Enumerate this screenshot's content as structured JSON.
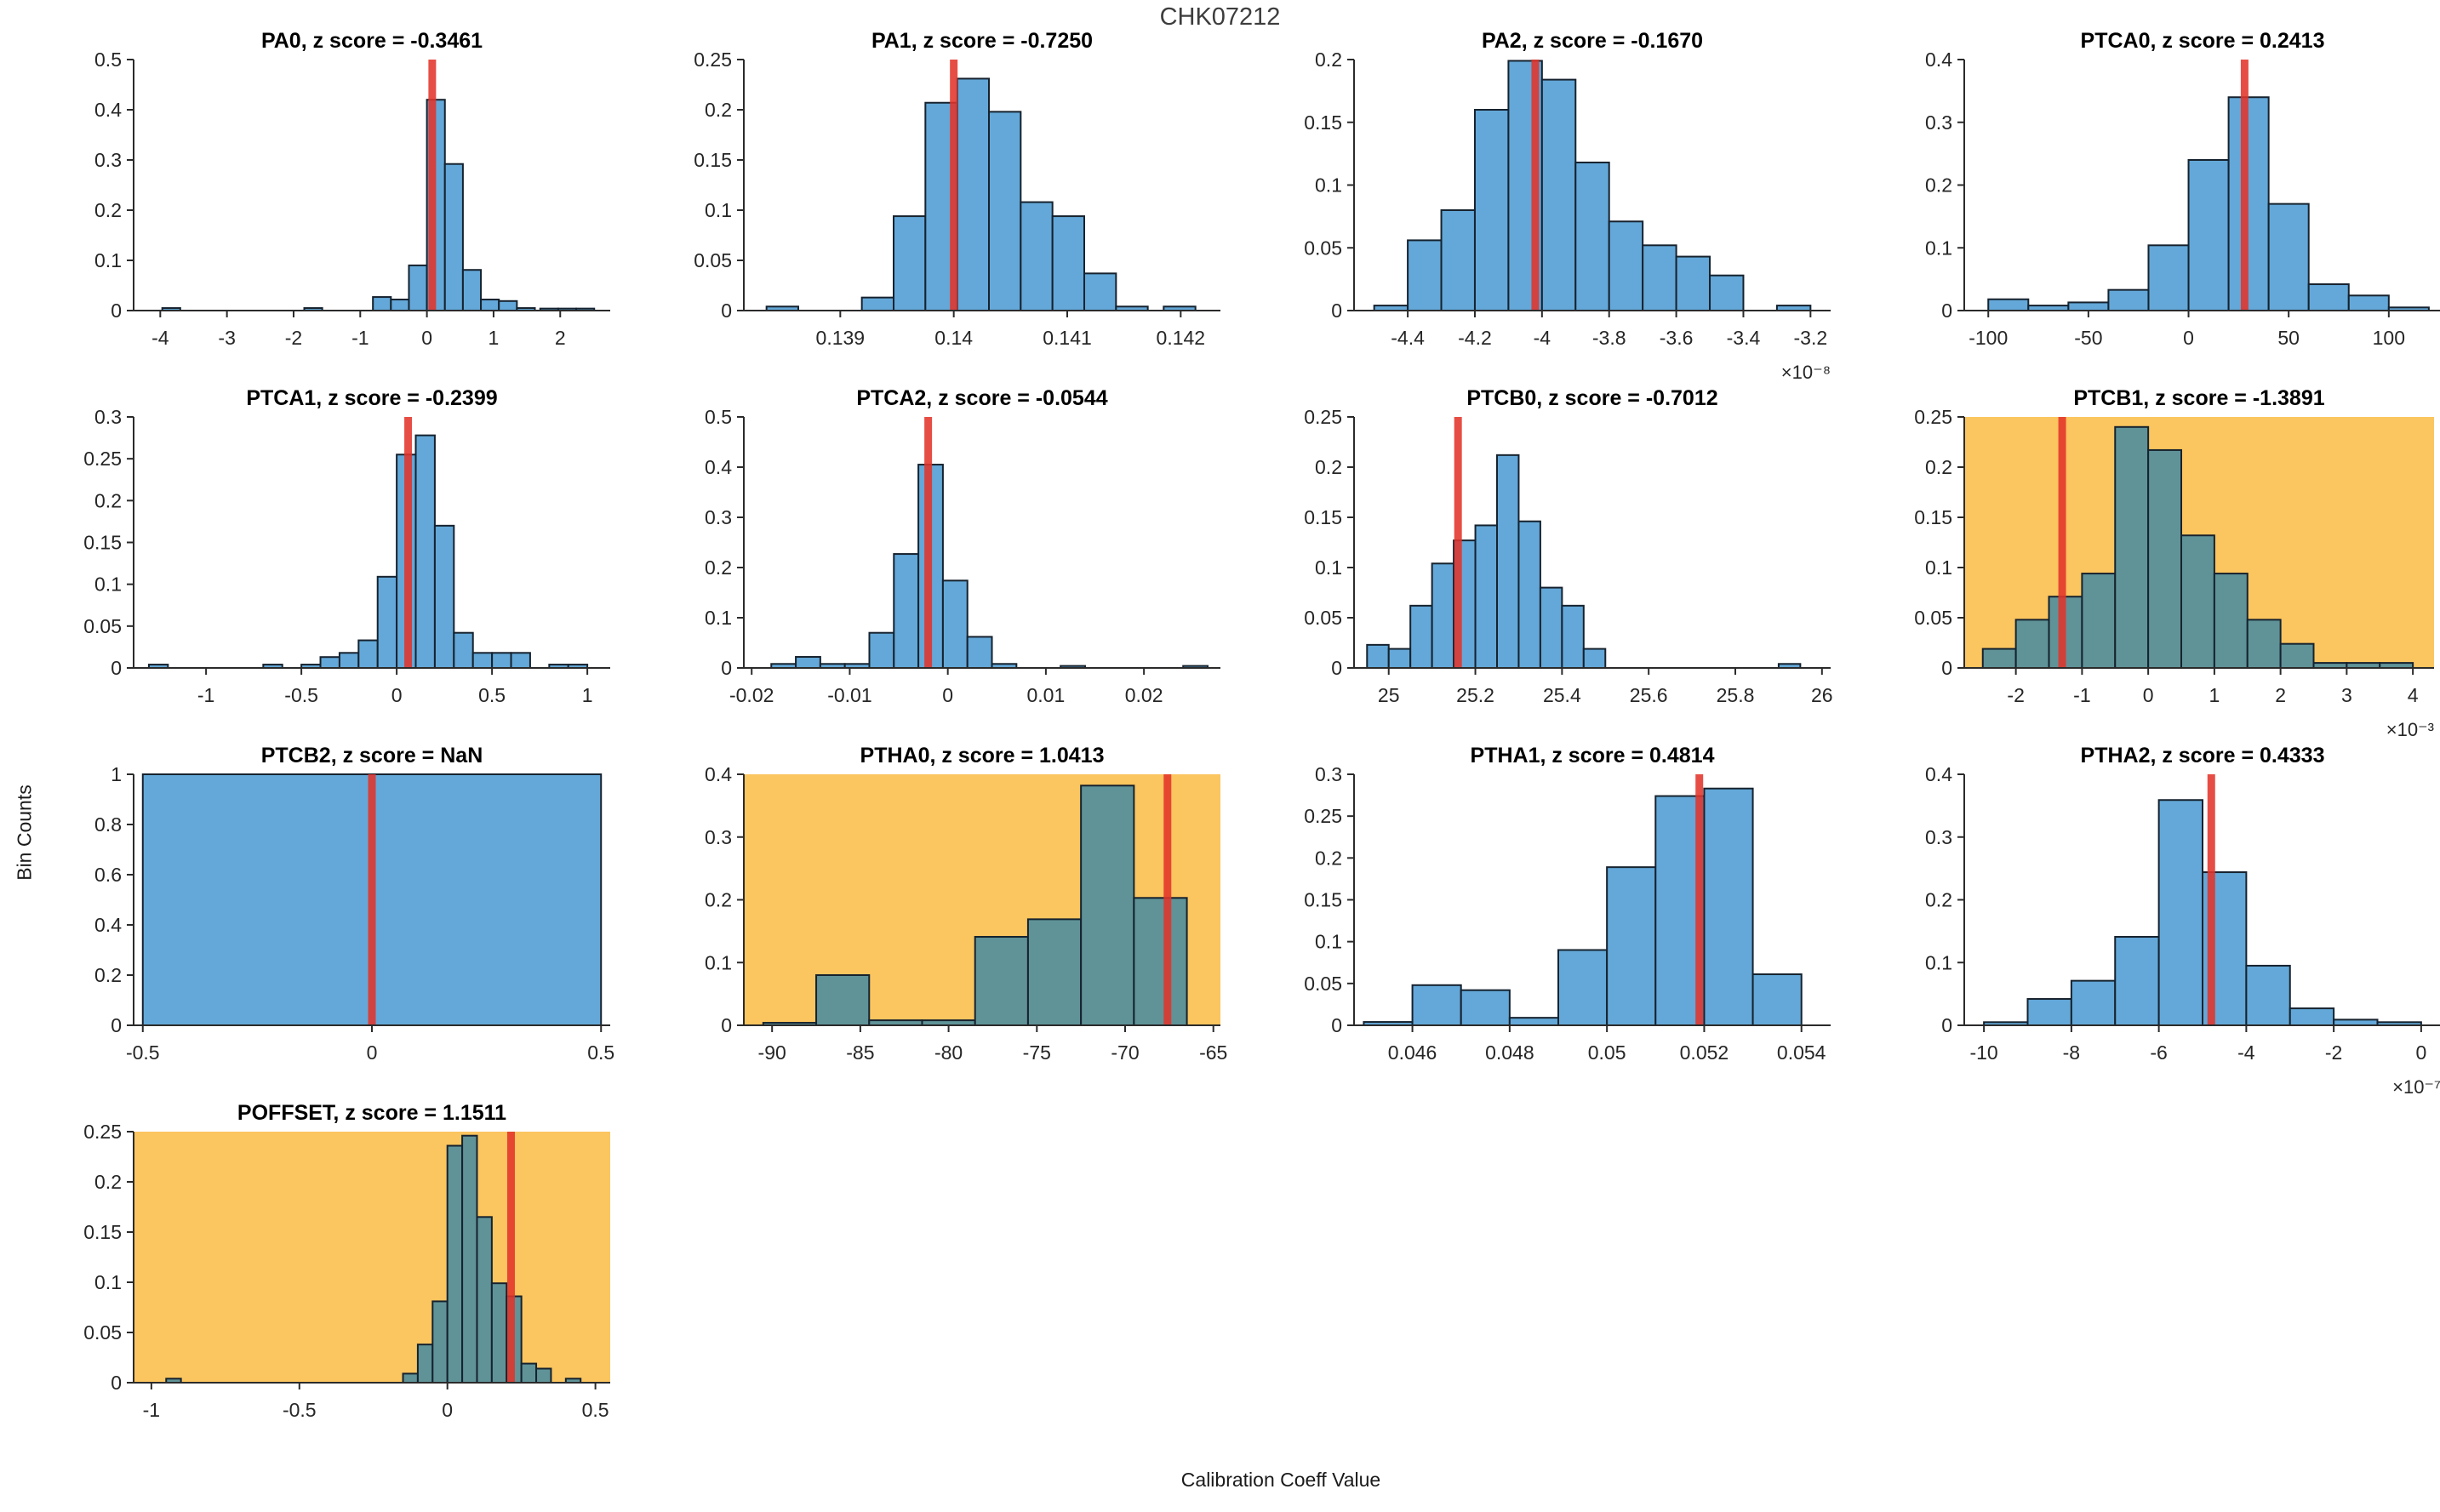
{
  "figure": {
    "title": "CHK07212",
    "xlabel": "Calibration Coeff Value",
    "ylabel": "Bin Counts"
  },
  "colors": {
    "bar_fill": "#63a8d8",
    "bar_fill_highlight": "#5f9398",
    "bar_edge": "#16222e",
    "highlight_bg": "#fbc55f",
    "red_line": "#e3342a",
    "axis": "#2b2b2b"
  },
  "chart_data": [
    {
      "type": "histogram",
      "name": "PA0",
      "title": "PA0, z score = -0.3461",
      "row": 0,
      "col": 0,
      "highlight": false,
      "xlim": [
        -4.4,
        2.75
      ],
      "ylim": [
        0,
        0.5
      ],
      "xticks": [
        -4,
        -3,
        -2,
        -1,
        0,
        1,
        2
      ],
      "xtick_labels": [
        "-4",
        "-3",
        "-2",
        "-1",
        "0",
        "1",
        "2"
      ],
      "yticks": [
        0,
        0.1,
        0.2,
        0.3,
        0.4,
        0.5
      ],
      "ytick_labels": [
        "0",
        "0.1",
        "0.2",
        "0.3",
        "0.4",
        "0.5"
      ],
      "bars": [
        [
          -3.97,
          -3.7,
          0.005
        ],
        [
          -1.84,
          -1.57,
          0.005
        ],
        [
          -0.81,
          -0.54,
          0.027
        ],
        [
          -0.54,
          -0.27,
          0.022
        ],
        [
          -0.27,
          0,
          0.09
        ],
        [
          0,
          0.27,
          0.42
        ],
        [
          0.27,
          0.54,
          0.292
        ],
        [
          0.54,
          0.81,
          0.081
        ],
        [
          0.81,
          1.08,
          0.022
        ],
        [
          1.08,
          1.35,
          0.019
        ],
        [
          1.35,
          1.62,
          0.005
        ],
        [
          1.7,
          1.97,
          0.004
        ],
        [
          1.97,
          2.24,
          0.004
        ],
        [
          2.24,
          2.51,
          0.004
        ]
      ],
      "red_line": 0.08
    },
    {
      "type": "histogram",
      "name": "PA1",
      "title": "PA1, z score = -0.7250",
      "row": 0,
      "col": 1,
      "highlight": false,
      "xlim": [
        0.13815,
        0.14235
      ],
      "ylim": [
        0,
        0.25
      ],
      "xticks": [
        0.139,
        0.14,
        0.141,
        0.142
      ],
      "xtick_labels": [
        "0.139",
        "0.14",
        "0.141",
        "0.142"
      ],
      "yticks": [
        0,
        0.05,
        0.1,
        0.15,
        0.2,
        0.25
      ],
      "ytick_labels": [
        "0",
        "0.05",
        "0.1",
        "0.15",
        "0.2",
        "0.25"
      ],
      "bars": [
        [
          0.13835,
          0.13863,
          0.004
        ],
        [
          0.13919,
          0.13947,
          0.013
        ],
        [
          0.13947,
          0.13975,
          0.094
        ],
        [
          0.13975,
          0.14003,
          0.207
        ],
        [
          0.14003,
          0.14031,
          0.231
        ],
        [
          0.14031,
          0.14059,
          0.198
        ],
        [
          0.14059,
          0.14087,
          0.108
        ],
        [
          0.14087,
          0.14115,
          0.094
        ],
        [
          0.14115,
          0.14143,
          0.037
        ],
        [
          0.14143,
          0.14171,
          0.004
        ],
        [
          0.14185,
          0.14213,
          0.004
        ]
      ],
      "red_line": 0.14
    },
    {
      "type": "histogram",
      "name": "PA2",
      "title": "PA2, z score = -0.1670",
      "row": 0,
      "col": 2,
      "highlight": false,
      "xlim": [
        -4.56,
        -3.14
      ],
      "ylim": [
        0,
        0.2
      ],
      "xticks": [
        -4.4,
        -4.2,
        -4,
        -3.8,
        -3.6,
        -3.4,
        -3.2
      ],
      "xtick_labels": [
        "-4.4",
        "-4.2",
        "-4",
        "-3.8",
        "-3.6",
        "-3.4",
        "-3.2"
      ],
      "yticks": [
        0,
        0.05,
        0.1,
        0.15,
        0.2
      ],
      "ytick_labels": [
        "0",
        "0.05",
        "0.1",
        "0.15",
        "0.2"
      ],
      "bars": [
        [
          -4.5,
          -4.4,
          0.004
        ],
        [
          -4.4,
          -4.3,
          0.056
        ],
        [
          -4.3,
          -4.2,
          0.08
        ],
        [
          -4.2,
          -4.1,
          0.16
        ],
        [
          -4.1,
          -4.0,
          0.199
        ],
        [
          -4.0,
          -3.9,
          0.184
        ],
        [
          -3.9,
          -3.8,
          0.118
        ],
        [
          -3.8,
          -3.7,
          0.071
        ],
        [
          -3.7,
          -3.6,
          0.052
        ],
        [
          -3.6,
          -3.5,
          0.043
        ],
        [
          -3.5,
          -3.4,
          0.028
        ],
        [
          -3.3,
          -3.2,
          0.004
        ]
      ],
      "red_line": -4.02,
      "exponent": "×10⁻⁸"
    },
    {
      "type": "histogram",
      "name": "PTCA0",
      "title": "PTCA0, z score = 0.2413",
      "row": 0,
      "col": 3,
      "highlight": false,
      "xlim": [
        -112,
        126
      ],
      "ylim": [
        0,
        0.4
      ],
      "xticks": [
        -100,
        -50,
        0,
        50,
        100
      ],
      "xtick_labels": [
        "-100",
        "-50",
        "0",
        "50",
        "100"
      ],
      "yticks": [
        0,
        0.1,
        0.2,
        0.3,
        0.4
      ],
      "ytick_labels": [
        "0",
        "0.1",
        "0.2",
        "0.3",
        "0.4"
      ],
      "bars": [
        [
          -100,
          -80,
          0.018
        ],
        [
          -80,
          -60,
          0.008
        ],
        [
          -60,
          -40,
          0.013
        ],
        [
          -40,
          -20,
          0.033
        ],
        [
          -20,
          0,
          0.104
        ],
        [
          0,
          20,
          0.24
        ],
        [
          20,
          40,
          0.34
        ],
        [
          40,
          60,
          0.17
        ],
        [
          60,
          80,
          0.042
        ],
        [
          80,
          100,
          0.024
        ],
        [
          100,
          120,
          0.005
        ]
      ],
      "red_line": 28
    },
    {
      "type": "histogram",
      "name": "PTCA1",
      "title": "PTCA1, z score = -0.2399",
      "row": 1,
      "col": 0,
      "highlight": false,
      "xlim": [
        -1.38,
        1.12
      ],
      "ylim": [
        0,
        0.3
      ],
      "xticks": [
        -1,
        -0.5,
        0,
        0.5,
        1
      ],
      "xtick_labels": [
        "-1",
        "-0.5",
        "0",
        "0.5",
        "1"
      ],
      "yticks": [
        0,
        0.05,
        0.1,
        0.15,
        0.2,
        0.25,
        0.3
      ],
      "ytick_labels": [
        "0",
        "0.05",
        "0.1",
        "0.15",
        "0.2",
        "0.25",
        "0.3"
      ],
      "bars": [
        [
          -1.3,
          -1.2,
          0.004
        ],
        [
          -0.7,
          -0.6,
          0.004
        ],
        [
          -0.5,
          -0.4,
          0.004
        ],
        [
          -0.4,
          -0.3,
          0.013
        ],
        [
          -0.3,
          -0.2,
          0.018
        ],
        [
          -0.2,
          -0.1,
          0.033
        ],
        [
          -0.1,
          0,
          0.109
        ],
        [
          0,
          0.1,
          0.255
        ],
        [
          0.1,
          0.2,
          0.278
        ],
        [
          0.2,
          0.3,
          0.17
        ],
        [
          0.3,
          0.4,
          0.042
        ],
        [
          0.4,
          0.5,
          0.018
        ],
        [
          0.5,
          0.6,
          0.018
        ],
        [
          0.6,
          0.7,
          0.018
        ],
        [
          0.8,
          0.9,
          0.004
        ],
        [
          0.9,
          1.0,
          0.004
        ]
      ],
      "red_line": 0.06
    },
    {
      "type": "histogram",
      "name": "PTCA2",
      "title": "PTCA2, z score = -0.0544",
      "row": 1,
      "col": 1,
      "highlight": false,
      "xlim": [
        -0.0208,
        0.0278
      ],
      "ylim": [
        0,
        0.5
      ],
      "xticks": [
        -0.02,
        -0.01,
        0,
        0.01,
        0.02
      ],
      "xtick_labels": [
        "-0.02",
        "-0.01",
        "0",
        "0.01",
        "0.02"
      ],
      "yticks": [
        0,
        0.1,
        0.2,
        0.3,
        0.4,
        0.5
      ],
      "ytick_labels": [
        "0",
        "0.1",
        "0.2",
        "0.3",
        "0.4",
        "0.5"
      ],
      "bars": [
        [
          -0.018,
          -0.0155,
          0.008
        ],
        [
          -0.0155,
          -0.013,
          0.022
        ],
        [
          -0.013,
          -0.0105,
          0.008
        ],
        [
          -0.0105,
          -0.008,
          0.008
        ],
        [
          -0.008,
          -0.0055,
          0.07
        ],
        [
          -0.0055,
          -0.003,
          0.227
        ],
        [
          -0.003,
          -0.0005,
          0.405
        ],
        [
          -0.0005,
          0.002,
          0.174
        ],
        [
          0.002,
          0.0045,
          0.062
        ],
        [
          0.0045,
          0.007,
          0.008
        ],
        [
          0.0115,
          0.014,
          0.004
        ],
        [
          0.024,
          0.0265,
          0.004
        ]
      ],
      "red_line": -0.002
    },
    {
      "type": "histogram",
      "name": "PTCB0",
      "title": "PTCB0, z score = -0.7012",
      "row": 1,
      "col": 2,
      "highlight": false,
      "xlim": [
        24.92,
        26.02
      ],
      "ylim": [
        0,
        0.25
      ],
      "xticks": [
        25,
        25.2,
        25.4,
        25.6,
        25.8,
        26
      ],
      "xtick_labels": [
        "25",
        "25.2",
        "25.4",
        "25.6",
        "25.8",
        "26"
      ],
      "yticks": [
        0,
        0.05,
        0.1,
        0.15,
        0.2,
        0.25
      ],
      "ytick_labels": [
        "0",
        "0.05",
        "0.1",
        "0.15",
        "0.2",
        "0.25"
      ],
      "bars": [
        [
          24.95,
          25.0,
          0.023
        ],
        [
          25.0,
          25.05,
          0.019
        ],
        [
          25.05,
          25.1,
          0.062
        ],
        [
          25.1,
          25.15,
          0.104
        ],
        [
          25.15,
          25.2,
          0.127
        ],
        [
          25.2,
          25.25,
          0.142
        ],
        [
          25.25,
          25.3,
          0.212
        ],
        [
          25.3,
          25.35,
          0.146
        ],
        [
          25.35,
          25.4,
          0.08
        ],
        [
          25.4,
          25.45,
          0.062
        ],
        [
          25.45,
          25.5,
          0.019
        ],
        [
          25.9,
          25.95,
          0.004
        ]
      ],
      "red_line": 25.16
    },
    {
      "type": "histogram",
      "name": "PTCB1",
      "title": "PTCB1, z score = -1.3891",
      "row": 1,
      "col": 3,
      "highlight": true,
      "wide": true,
      "xlim": [
        -2.78,
        4.32
      ],
      "ylim": [
        0,
        0.25
      ],
      "xticks": [
        -2,
        -1,
        0,
        1,
        2,
        3,
        4
      ],
      "xtick_labels": [
        "-2",
        "-1",
        "0",
        "1",
        "2",
        "3",
        "4"
      ],
      "yticks": [
        0,
        0.05,
        0.1,
        0.15,
        0.2,
        0.25
      ],
      "ytick_labels": [
        "0",
        "0.05",
        "0.1",
        "0.15",
        "0.2",
        "0.25"
      ],
      "bars": [
        [
          -2.5,
          -2,
          0.019
        ],
        [
          -2,
          -1.5,
          0.048
        ],
        [
          -1.5,
          -1,
          0.071
        ],
        [
          -1,
          -0.5,
          0.094
        ],
        [
          -0.5,
          0,
          0.24
        ],
        [
          0,
          0.5,
          0.217
        ],
        [
          0.5,
          1,
          0.132
        ],
        [
          1,
          1.5,
          0.094
        ],
        [
          1.5,
          2,
          0.048
        ],
        [
          2,
          2.5,
          0.024
        ],
        [
          2.5,
          3,
          0.005
        ],
        [
          3,
          3.5,
          0.005
        ],
        [
          3.5,
          4,
          0.005
        ]
      ],
      "red_line": -1.3,
      "exponent": "×10⁻³"
    },
    {
      "type": "histogram",
      "name": "PTCB2",
      "title": "PTCB2, z score = NaN",
      "row": 2,
      "col": 0,
      "highlight": false,
      "xlim": [
        -0.52,
        0.52
      ],
      "ylim": [
        0,
        1
      ],
      "xticks": [
        -0.5,
        0,
        0.5
      ],
      "xtick_labels": [
        "-0.5",
        "0",
        "0.5"
      ],
      "yticks": [
        0,
        0.2,
        0.4,
        0.6,
        0.8,
        1
      ],
      "ytick_labels": [
        "0",
        "0.2",
        "0.4",
        "0.6",
        "0.8",
        "1"
      ],
      "bars": [
        [
          -0.5,
          0.5,
          1
        ]
      ],
      "red_line": 0
    },
    {
      "type": "histogram",
      "name": "PTHA0",
      "title": "PTHA0, z score = 1.0413",
      "row": 2,
      "col": 1,
      "highlight": true,
      "xlim": [
        -91.6,
        -64.6
      ],
      "ylim": [
        0,
        0.4
      ],
      "xticks": [
        -90,
        -85,
        -80,
        -75,
        -70,
        -65
      ],
      "xtick_labels": [
        "-90",
        "-85",
        "-80",
        "-75",
        "-70",
        "-65"
      ],
      "yticks": [
        0,
        0.1,
        0.2,
        0.3,
        0.4
      ],
      "ytick_labels": [
        "0",
        "0.1",
        "0.2",
        "0.3",
        "0.4"
      ],
      "bars": [
        [
          -90.5,
          -87.5,
          0.004
        ],
        [
          -87.5,
          -84.5,
          0.08
        ],
        [
          -84.5,
          -81.5,
          0.008
        ],
        [
          -81.5,
          -78.5,
          0.008
        ],
        [
          -78.5,
          -75.5,
          0.141
        ],
        [
          -75.5,
          -72.5,
          0.169
        ],
        [
          -72.5,
          -69.5,
          0.382
        ],
        [
          -69.5,
          -66.5,
          0.203
        ]
      ],
      "red_line": -67.6
    },
    {
      "type": "histogram",
      "name": "PTHA1",
      "title": "PTHA1, z score = 0.4814",
      "row": 2,
      "col": 2,
      "highlight": false,
      "xlim": [
        0.0448,
        0.0546
      ],
      "ylim": [
        0,
        0.3
      ],
      "xticks": [
        0.046,
        0.048,
        0.05,
        0.052,
        0.054
      ],
      "xtick_labels": [
        "0.046",
        "0.048",
        "0.05",
        "0.052",
        "0.054"
      ],
      "yticks": [
        0,
        0.05,
        0.1,
        0.15,
        0.2,
        0.25,
        0.3
      ],
      "ytick_labels": [
        "0",
        "0.05",
        "0.1",
        "0.15",
        "0.2",
        "0.25",
        "0.3"
      ],
      "bars": [
        [
          0.045,
          0.046,
          0.004
        ],
        [
          0.046,
          0.047,
          0.048
        ],
        [
          0.047,
          0.048,
          0.042
        ],
        [
          0.048,
          0.049,
          0.009
        ],
        [
          0.049,
          0.05,
          0.09
        ],
        [
          0.05,
          0.051,
          0.189
        ],
        [
          0.051,
          0.052,
          0.274
        ],
        [
          0.052,
          0.053,
          0.283
        ],
        [
          0.053,
          0.054,
          0.061
        ]
      ],
      "red_line": 0.0519
    },
    {
      "type": "histogram",
      "name": "PTHA2",
      "title": "PTHA2, z score = 0.4333",
      "row": 2,
      "col": 3,
      "highlight": false,
      "xlim": [
        -10.45,
        0.45
      ],
      "ylim": [
        0,
        0.4
      ],
      "xticks": [
        -10,
        -8,
        -6,
        -4,
        -2,
        0
      ],
      "xtick_labels": [
        "-10",
        "-8",
        "-6",
        "-4",
        "-2",
        "0"
      ],
      "yticks": [
        0,
        0.1,
        0.2,
        0.3,
        0.4
      ],
      "ytick_labels": [
        "0",
        "0.1",
        "0.2",
        "0.3",
        "0.4"
      ],
      "bars": [
        [
          -10,
          -9,
          0.005
        ],
        [
          -9,
          -8,
          0.042
        ],
        [
          -8,
          -7,
          0.071
        ],
        [
          -7,
          -6,
          0.141
        ],
        [
          -6,
          -5,
          0.359
        ],
        [
          -5,
          -4,
          0.244
        ],
        [
          -4,
          -3,
          0.095
        ],
        [
          -3,
          -2,
          0.027
        ],
        [
          -2,
          -1,
          0.009
        ],
        [
          -1,
          0,
          0.005
        ]
      ],
      "red_line": -4.8,
      "exponent": "×10⁻⁷"
    },
    {
      "type": "histogram",
      "name": "POFFSET",
      "title": "POFFSET, z score = 1.1511",
      "row": 3,
      "col": 0,
      "highlight": true,
      "xlim": [
        -1.06,
        0.55
      ],
      "ylim": [
        0,
        0.25
      ],
      "xticks": [
        -1,
        -0.5,
        0,
        0.5
      ],
      "xtick_labels": [
        "-1",
        "-0.5",
        "0",
        "0.5"
      ],
      "yticks": [
        0,
        0.05,
        0.1,
        0.15,
        0.2,
        0.25
      ],
      "ytick_labels": [
        "0",
        "0.05",
        "0.1",
        "0.15",
        "0.2",
        "0.25"
      ],
      "bars": [
        [
          -0.95,
          -0.9,
          0.004
        ],
        [
          -0.15,
          -0.1,
          0.009
        ],
        [
          -0.1,
          -0.05,
          0.038
        ],
        [
          -0.05,
          0,
          0.081
        ],
        [
          0,
          0.05,
          0.236
        ],
        [
          0.05,
          0.1,
          0.246
        ],
        [
          0.1,
          0.15,
          0.165
        ],
        [
          0.15,
          0.2,
          0.099
        ],
        [
          0.2,
          0.25,
          0.086
        ],
        [
          0.25,
          0.3,
          0.019
        ],
        [
          0.3,
          0.35,
          0.014
        ],
        [
          0.4,
          0.45,
          0.004
        ]
      ],
      "red_line": 0.215
    }
  ]
}
